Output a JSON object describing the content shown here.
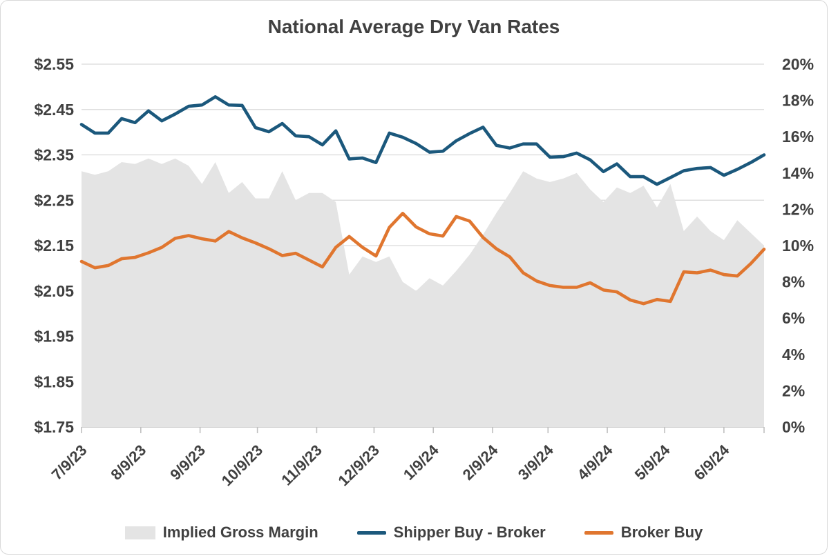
{
  "chart_data": {
    "type": "combo-area-line",
    "title": "National Average Dry Van Rates",
    "plot_bg": "#ffffff",
    "gridline_color": "#d9d9d9",
    "axis_line_color": "#bfbfbf",
    "label_color": "#404040",
    "left_axis": {
      "min": 1.75,
      "max": 2.55,
      "step": 0.1,
      "ticks": [
        "$2.55",
        "$2.45",
        "$2.35",
        "$2.25",
        "$2.15",
        "$2.05",
        "$1.95",
        "$1.85",
        "$1.75"
      ]
    },
    "right_axis": {
      "min": 0,
      "max": 20,
      "step": 2,
      "ticks": [
        "20%",
        "18%",
        "16%",
        "14%",
        "12%",
        "10%",
        "8%",
        "6%",
        "4%",
        "2%",
        "0%"
      ]
    },
    "x_axis": {
      "unit": "weekly points starting 7/9/23",
      "total_days": 357,
      "ticks": [
        {
          "label": "7/9/23",
          "day": 0
        },
        {
          "label": "8/9/23",
          "day": 31
        },
        {
          "label": "9/9/23",
          "day": 62
        },
        {
          "label": "10/9/23",
          "day": 92
        },
        {
          "label": "11/9/23",
          "day": 123
        },
        {
          "label": "12/9/23",
          "day": 153
        },
        {
          "label": "1/9/24",
          "day": 184
        },
        {
          "label": "2/9/24",
          "day": 215
        },
        {
          "label": "3/9/24",
          "day": 244
        },
        {
          "label": "4/9/24",
          "day": 275
        },
        {
          "label": "5/9/24",
          "day": 305
        },
        {
          "label": "6/9/24",
          "day": 336
        }
      ]
    },
    "series": [
      {
        "name": "Implied Gross Margin",
        "type": "area",
        "axis": "right",
        "color": "#e4e4e4",
        "values": [
          14.1,
          13.9,
          14.1,
          14.6,
          14.5,
          14.8,
          14.5,
          14.8,
          14.4,
          13.4,
          14.6,
          12.9,
          13.5,
          12.6,
          12.6,
          14.1,
          12.5,
          12.9,
          12.9,
          12.4,
          8.4,
          9.4,
          9.1,
          9.4,
          8.0,
          7.5,
          8.2,
          7.8,
          8.6,
          9.5,
          10.6,
          11.8,
          12.9,
          14.1,
          13.7,
          13.5,
          13.7,
          14.0,
          13.1,
          12.4,
          13.2,
          12.9,
          13.3,
          12.1,
          13.4,
          10.8,
          11.6,
          10.8,
          10.3,
          11.4,
          10.7,
          10.0
        ]
      },
      {
        "name": "Shipper Buy - Broker",
        "type": "line",
        "axis": "left",
        "color": "#1b587c",
        "values": [
          2.417,
          2.398,
          2.398,
          2.43,
          2.421,
          2.447,
          2.425,
          2.44,
          2.457,
          2.46,
          2.478,
          2.46,
          2.459,
          2.41,
          2.401,
          2.419,
          2.392,
          2.39,
          2.372,
          2.403,
          2.341,
          2.343,
          2.333,
          2.398,
          2.389,
          2.375,
          2.356,
          2.358,
          2.381,
          2.397,
          2.411,
          2.371,
          2.365,
          2.374,
          2.374,
          2.345,
          2.346,
          2.354,
          2.339,
          2.313,
          2.33,
          2.302,
          2.302,
          2.285,
          2.3,
          2.315,
          2.32,
          2.322,
          2.305,
          2.318,
          2.333,
          2.35
        ]
      },
      {
        "name": "Broker Buy",
        "type": "line",
        "axis": "left",
        "color": "#e0762f",
        "values": [
          2.115,
          2.101,
          2.106,
          2.121,
          2.124,
          2.134,
          2.146,
          2.166,
          2.172,
          2.165,
          2.16,
          2.181,
          2.167,
          2.156,
          2.143,
          2.128,
          2.133,
          2.118,
          2.103,
          2.146,
          2.17,
          2.146,
          2.127,
          2.19,
          2.221,
          2.191,
          2.176,
          2.171,
          2.214,
          2.204,
          2.168,
          2.143,
          2.125,
          2.09,
          2.072,
          2.062,
          2.058,
          2.058,
          2.068,
          2.052,
          2.048,
          2.03,
          2.022,
          2.031,
          2.027,
          2.092,
          2.09,
          2.096,
          2.086,
          2.083,
          2.11,
          2.142
        ]
      }
    ]
  }
}
